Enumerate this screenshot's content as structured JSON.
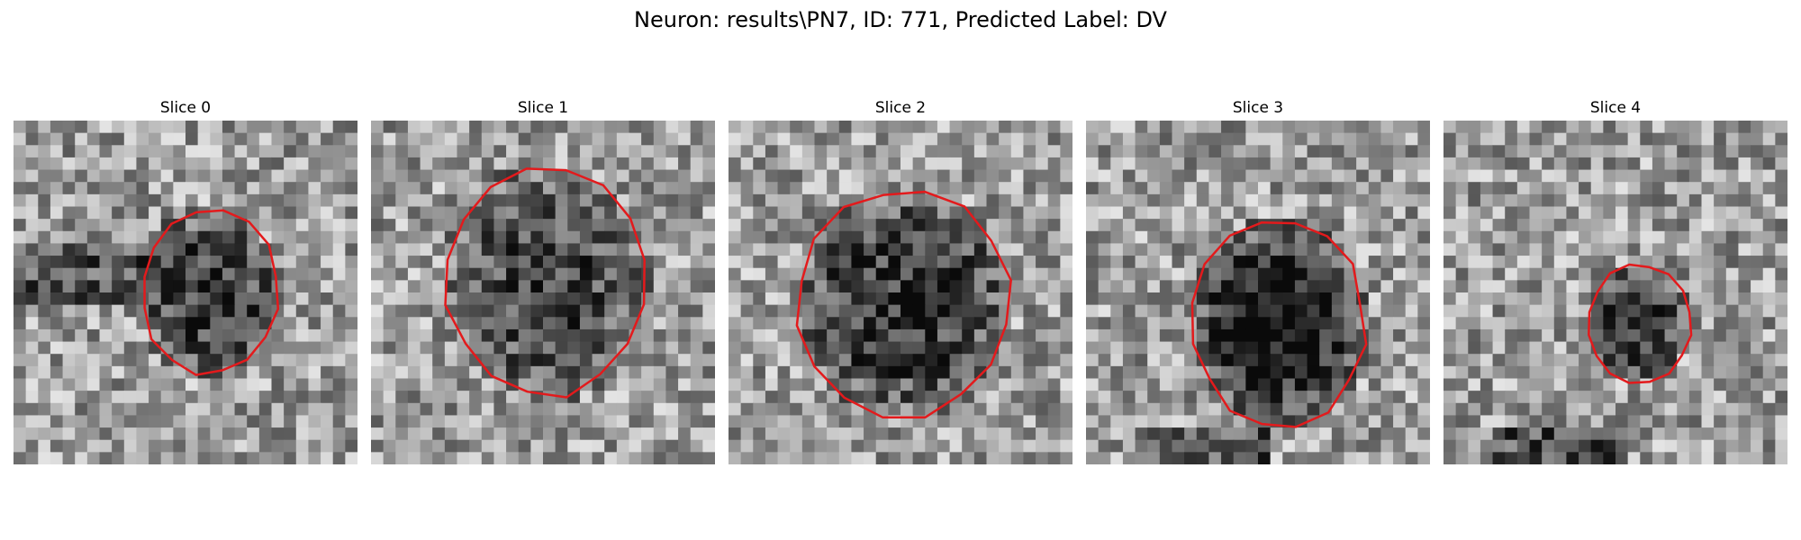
{
  "figure": {
    "title": "Neuron: results\\PN7, ID: 771, Predicted Label: DV"
  },
  "panels": [
    {
      "title": "Slice 0",
      "contour_color": "#e31a1c"
    },
    {
      "title": "Slice 1",
      "contour_color": "#e31a1c"
    },
    {
      "title": "Slice 2",
      "contour_color": "#e31a1c"
    },
    {
      "title": "Slice 3",
      "contour_color": "#e31a1c"
    },
    {
      "title": "Slice 4",
      "contour_color": "#e31a1c"
    }
  ],
  "colormap": "grayscale"
}
